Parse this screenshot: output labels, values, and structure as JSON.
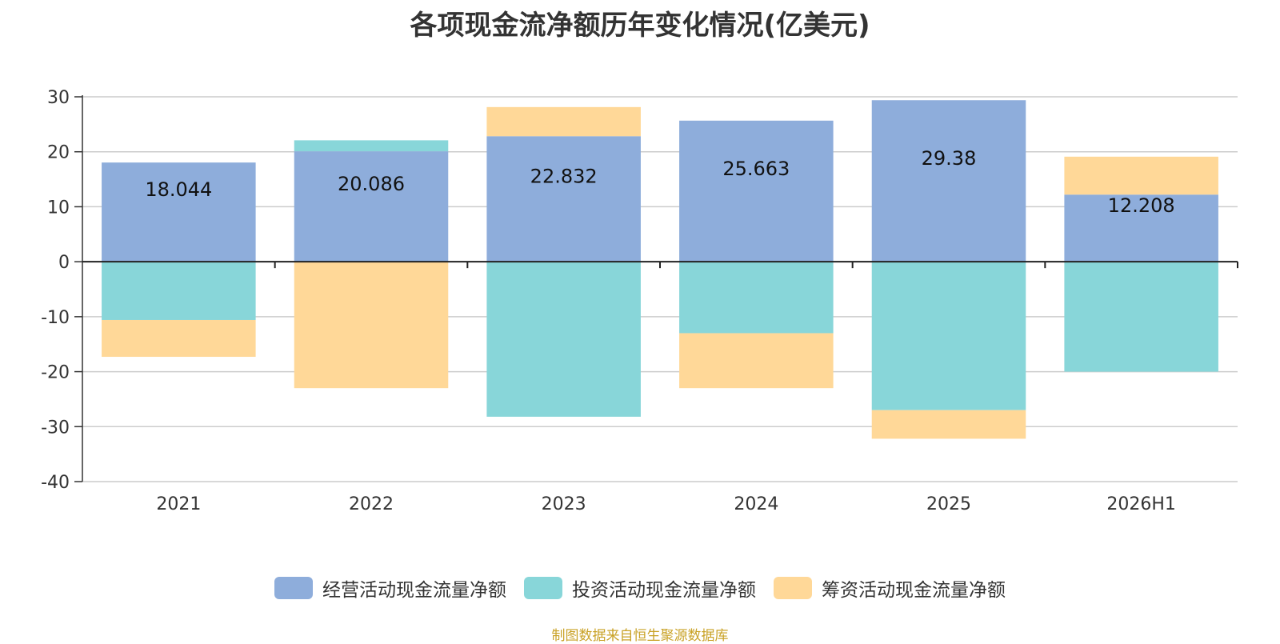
{
  "chart_data": {
    "type": "bar",
    "stacked": true,
    "title": "各项现金流净额历年变化情况(亿美元)",
    "categories": [
      "2021",
      "2022",
      "2023",
      "2024",
      "2025",
      "2026H1"
    ],
    "series": [
      {
        "name": "经营活动现金流量净额",
        "color": "#8eaddb",
        "values": [
          18.044,
          20.086,
          22.832,
          25.663,
          29.38,
          12.208
        ],
        "labels": [
          "18.044",
          "20.086",
          "22.832",
          "25.663",
          "29.38",
          "12.208"
        ]
      },
      {
        "name": "投资活动现金流量净额",
        "color": "#88d6d9",
        "values": [
          -10.6,
          2.0,
          -28.2,
          -13.0,
          -27.0,
          -20.0
        ]
      },
      {
        "name": "筹资活动现金流量净额",
        "color": "#ffd898",
        "values": [
          -6.7,
          -23.0,
          5.3,
          -10.0,
          -5.2,
          6.9
        ]
      }
    ],
    "ylim": [
      -40,
      30
    ],
    "yticks": [
      30,
      20,
      10,
      0,
      -10,
      -20,
      -30,
      -40
    ],
    "grid": true,
    "legend_position": "bottom-center"
  },
  "source_text": "制图数据来自恒生聚源数据库"
}
